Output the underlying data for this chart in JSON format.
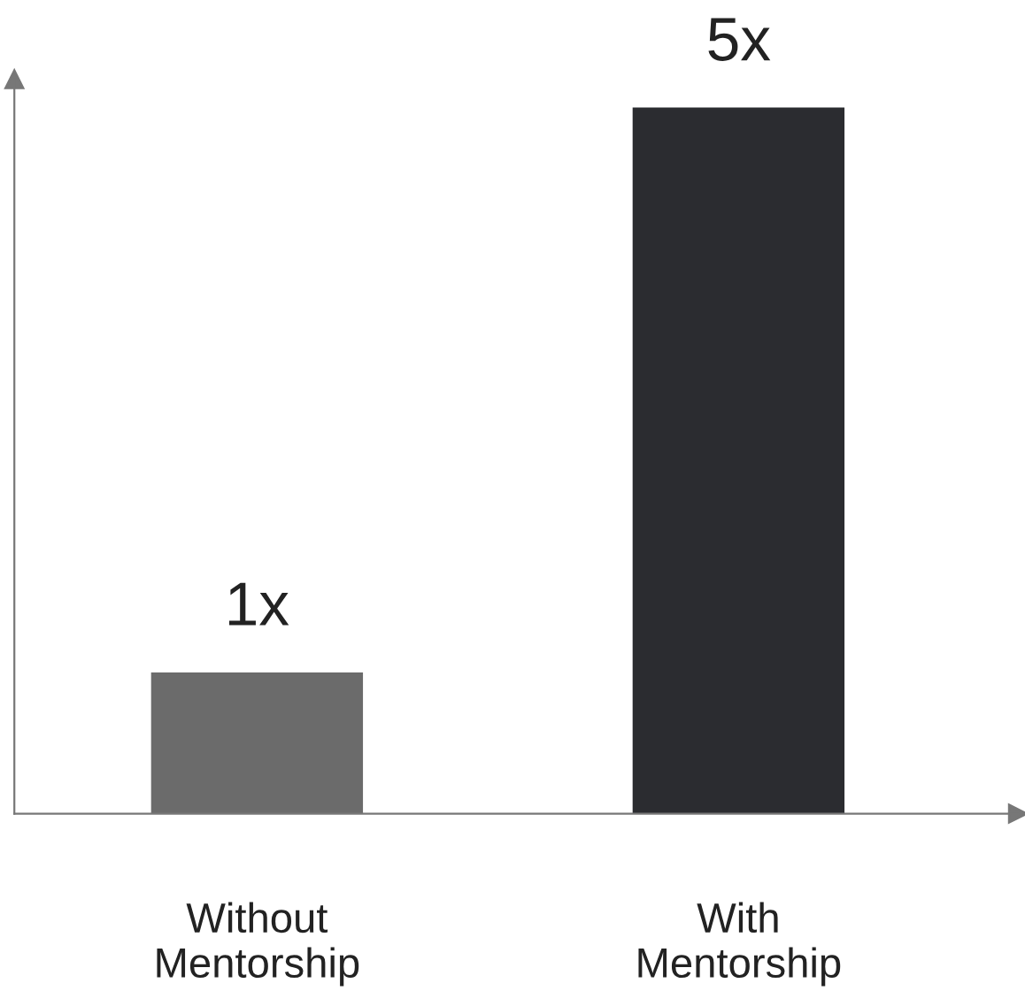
{
  "chart_data": {
    "type": "bar",
    "categories": [
      "Without\nMentorship",
      "With\nMentorship"
    ],
    "values": [
      1,
      5
    ],
    "colors": [
      "#6b6b6b",
      "#2b2c30"
    ],
    "value_labels": [
      "1x",
      "5x"
    ],
    "grid": false,
    "legend": false
  }
}
